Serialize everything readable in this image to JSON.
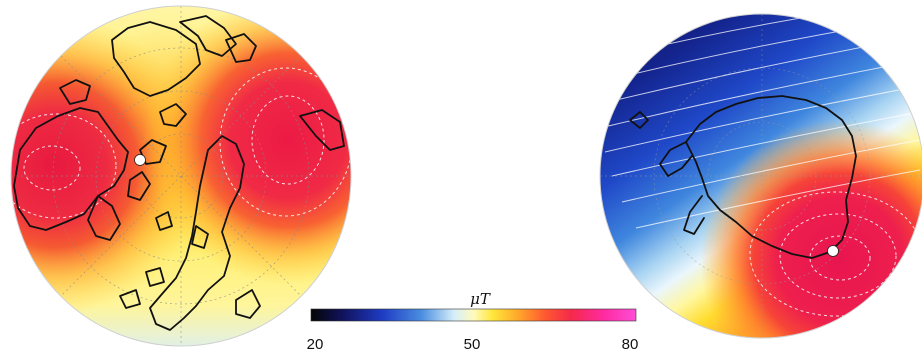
{
  "maps": [
    {
      "hemisphere": "north",
      "pole_marker": "white-dot"
    },
    {
      "hemisphere": "south",
      "pole_marker": "white-dot"
    }
  ],
  "colorbar": {
    "unit": "μT",
    "min_label": "20",
    "mid_label": "50",
    "max_label": "80",
    "range": [
      20,
      80
    ],
    "colors": [
      "#050505",
      "#11135e",
      "#1f3cc4",
      "#4a8ee0",
      "#d4eefb",
      "#fffbbd",
      "#ffe63a",
      "#ffa52a",
      "#ff5930",
      "#f5294b",
      "#ff2aa0",
      "#ff4fd6"
    ]
  }
}
